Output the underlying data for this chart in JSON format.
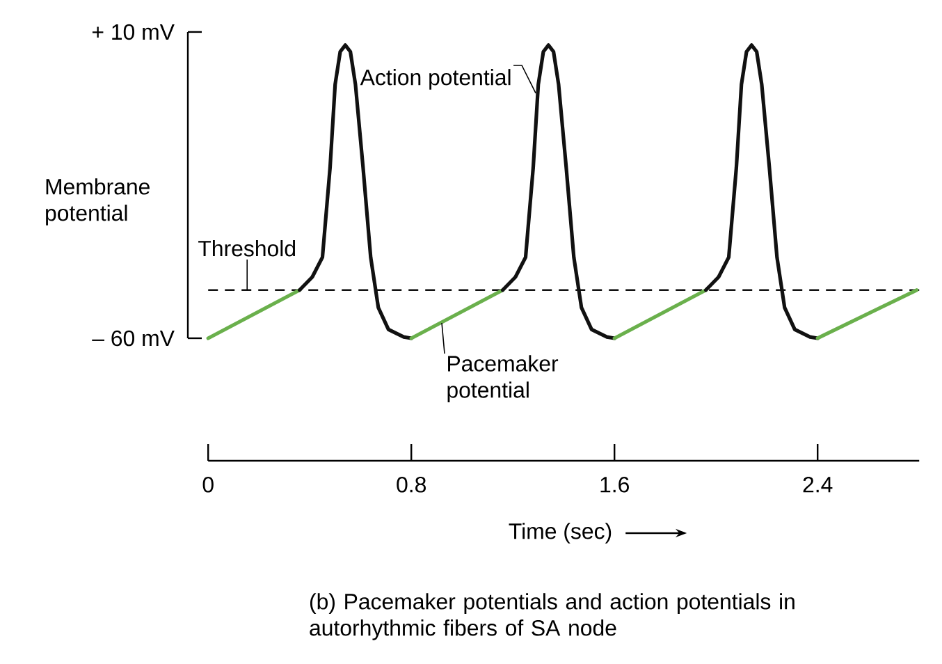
{
  "chart_data": {
    "type": "line",
    "xlabel": "Time (sec)",
    "ylabel": "Membrane potential",
    "xlim": [
      -0.08,
      2.8
    ],
    "ylim": [
      -88,
      10
    ],
    "xticks": [
      0,
      0.8,
      1.6,
      2.4
    ],
    "yticks": [
      {
        "value": 10,
        "label": "+ 10 mV"
      },
      {
        "value": -60,
        "label": "– 60 mV"
      }
    ],
    "series": [
      {
        "color": "#6ab04c",
        "x": [
          0,
          0.36
        ],
        "values": [
          -60,
          -49
        ]
      },
      {
        "color": "#111111",
        "x": [
          0.36,
          0.41,
          0.45,
          0.48,
          0.5,
          0.52,
          0.54,
          0.56,
          0.58,
          0.61,
          0.64,
          0.67,
          0.71,
          0.77,
          0.8
        ],
        "values": [
          -49,
          -46,
          -41.5,
          -21,
          -2,
          5.5,
          7,
          5.5,
          -2,
          -21,
          -41.5,
          -53,
          -58,
          -59.7,
          -60
        ]
      },
      {
        "color": "#6ab04c",
        "x": [
          0.8,
          1.16
        ],
        "values": [
          -60,
          -49
        ]
      },
      {
        "color": "#111111",
        "x": [
          1.16,
          1.21,
          1.25,
          1.28,
          1.3,
          1.32,
          1.34,
          1.36,
          1.38,
          1.41,
          1.44,
          1.47,
          1.51,
          1.57,
          1.6
        ],
        "values": [
          -49,
          -46,
          -41.5,
          -21,
          -2,
          5.5,
          7,
          5.5,
          -2,
          -21,
          -41.5,
          -53,
          -58,
          -59.7,
          -60
        ]
      },
      {
        "color": "#6ab04c",
        "x": [
          1.6,
          1.96
        ],
        "values": [
          -60,
          -49
        ]
      },
      {
        "color": "#111111",
        "x": [
          1.96,
          2.01,
          2.05,
          2.08,
          2.1,
          2.12,
          2.14,
          2.16,
          2.18,
          2.21,
          2.24,
          2.27,
          2.31,
          2.37,
          2.4
        ],
        "values": [
          -49,
          -46,
          -41.5,
          -21,
          -2,
          5.5,
          7,
          5.5,
          -2,
          -21,
          -41.5,
          -53,
          -58,
          -59.7,
          -60
        ]
      },
      {
        "color": "#6ab04c",
        "x": [
          2.4,
          2.79
        ],
        "values": [
          -60,
          -49
        ]
      }
    ],
    "ref_lines": [
      {
        "axis": "y",
        "value": -49,
        "label": "Threshold",
        "line_style": "dashed",
        "color": "#111111"
      }
    ],
    "annotations": [
      {
        "text": "Action potential",
        "x": 1.29,
        "y": -4
      },
      {
        "text": "Pacemaker potential",
        "x": 0.92,
        "y": -56.5
      },
      "(b) Pacemaker potentials and action potentials in autorhythmic fibers of SA node"
    ]
  }
}
